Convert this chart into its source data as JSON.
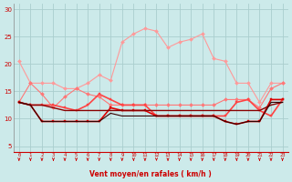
{
  "xlabel": "Vent moyen/en rafales ( km/h )",
  "background_color": "#cceaea",
  "grid_color": "#aacece",
  "x_values": [
    0,
    1,
    2,
    3,
    4,
    5,
    6,
    7,
    8,
    9,
    10,
    11,
    12,
    13,
    14,
    15,
    16,
    17,
    18,
    19,
    20,
    21,
    22,
    23
  ],
  "line1": {
    "color": "#ff9999",
    "marker": "D",
    "markersize": 2.0,
    "linewidth": 0.8,
    "values": [
      20.5,
      16.5,
      16.5,
      16.5,
      15.5,
      15.5,
      16.5,
      18.0,
      17.0,
      24.0,
      25.5,
      26.5,
      26.0,
      23.0,
      24.0,
      24.5,
      25.5,
      21.0,
      20.5,
      16.5,
      16.5,
      13.0,
      16.5,
      16.5
    ]
  },
  "line2": {
    "color": "#ff7777",
    "marker": "D",
    "markersize": 2.0,
    "linewidth": 0.8,
    "values": [
      13.0,
      16.5,
      14.5,
      12.0,
      14.0,
      15.5,
      14.5,
      14.0,
      12.5,
      12.5,
      12.5,
      12.5,
      12.5,
      12.5,
      12.5,
      12.5,
      12.5,
      12.5,
      13.5,
      13.5,
      13.5,
      12.0,
      15.5,
      16.5
    ]
  },
  "line3": {
    "color": "#ff4444",
    "marker": "s",
    "markersize": 1.8,
    "linewidth": 1.2,
    "values": [
      13.0,
      12.5,
      12.5,
      12.5,
      12.0,
      11.5,
      12.5,
      14.5,
      13.5,
      12.5,
      12.5,
      12.5,
      10.5,
      10.5,
      10.5,
      10.5,
      10.5,
      10.5,
      10.5,
      13.0,
      13.5,
      11.5,
      10.5,
      13.5
    ]
  },
  "line4": {
    "color": "#dd0000",
    "marker": "s",
    "markersize": 1.8,
    "linewidth": 1.2,
    "values": [
      13.0,
      12.5,
      9.5,
      9.5,
      9.5,
      9.5,
      9.5,
      9.5,
      12.0,
      11.5,
      11.5,
      11.5,
      10.5,
      10.5,
      10.5,
      10.5,
      10.5,
      10.5,
      9.5,
      9.0,
      9.5,
      9.5,
      13.5,
      13.5
    ]
  },
  "line5": {
    "color": "#880000",
    "marker": null,
    "markersize": 0,
    "linewidth": 1.0,
    "values": [
      13.0,
      12.5,
      12.5,
      12.0,
      11.5,
      11.5,
      11.5,
      11.5,
      11.5,
      11.5,
      11.5,
      11.5,
      11.5,
      11.5,
      11.5,
      11.5,
      11.5,
      11.5,
      11.5,
      11.5,
      11.5,
      11.5,
      12.5,
      13.0
    ]
  },
  "line6": {
    "color": "#330000",
    "marker": null,
    "markersize": 0,
    "linewidth": 0.8,
    "values": [
      13.0,
      12.5,
      9.5,
      9.5,
      9.5,
      9.5,
      9.5,
      9.5,
      11.0,
      10.5,
      10.5,
      10.5,
      10.5,
      10.5,
      10.5,
      10.5,
      10.5,
      10.5,
      9.5,
      9.0,
      9.5,
      9.5,
      13.0,
      13.0
    ]
  },
  "ylim": [
    4,
    31
  ],
  "yticks": [
    5,
    10,
    15,
    20,
    25,
    30
  ],
  "xticks": [
    0,
    1,
    2,
    3,
    4,
    5,
    6,
    7,
    8,
    9,
    10,
    11,
    12,
    13,
    14,
    15,
    16,
    17,
    18,
    19,
    20,
    21,
    22,
    23
  ],
  "arrow_color": "#cc0000",
  "tick_label_color": "#cc0000",
  "axis_label_color": "#cc0000",
  "ytick_color": "#cc0000"
}
